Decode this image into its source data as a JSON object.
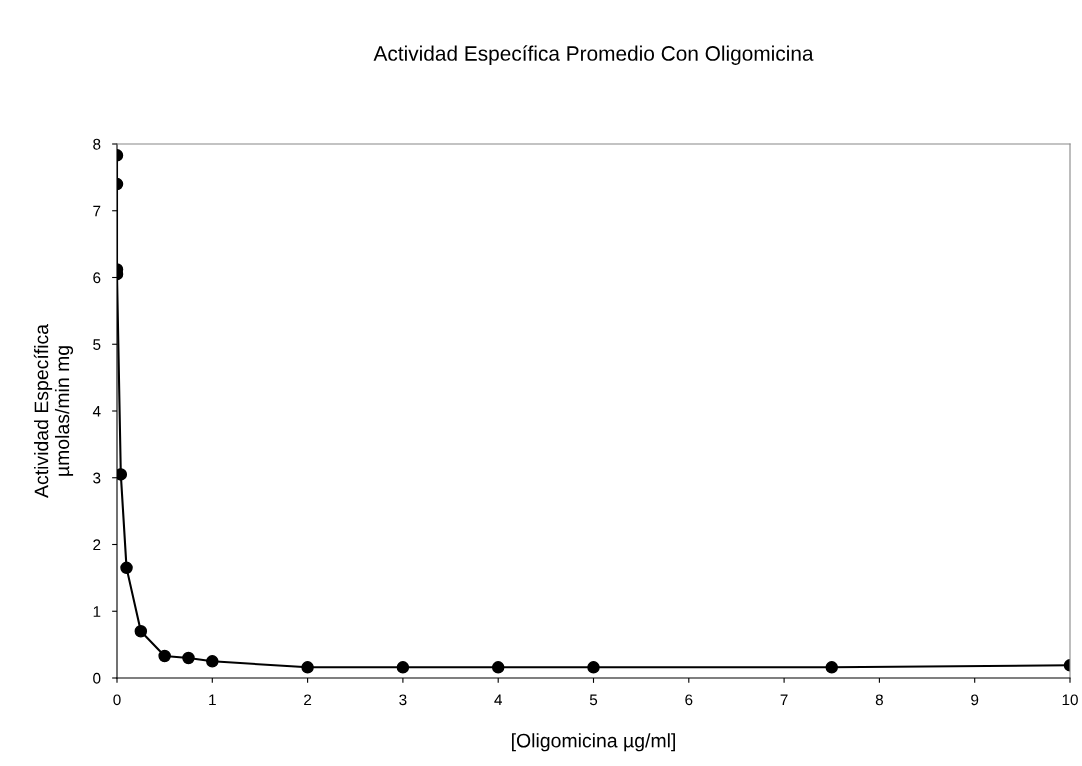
{
  "chart_data": {
    "type": "line",
    "title": "Actividad Específica Promedio Con Oligomicina",
    "xlabel": "[Oligomicina µg/ml]",
    "ylabel": "Actividad Específica\nµmolas/min mg",
    "x": [
      0,
      0,
      0,
      0,
      0.04,
      0.1,
      0.25,
      0.5,
      0.75,
      1,
      2,
      3,
      4,
      5,
      7.5,
      10
    ],
    "series": [
      {
        "color": "#000000",
        "values": [
          7.83,
          7.4,
          6.12,
          6.05,
          3.05,
          1.65,
          0.7,
          0.33,
          0.3,
          0.25,
          0.16,
          0.16,
          0.16,
          0.16,
          0.16,
          0.19
        ]
      }
    ],
    "xlim": [
      0,
      10
    ],
    "xticks": [
      0,
      1,
      2,
      3,
      4,
      5,
      6,
      7,
      8,
      9,
      10
    ],
    "ylim": [
      0,
      8
    ],
    "yticks": [
      0,
      1,
      2,
      3,
      4,
      5,
      6,
      7,
      8
    ],
    "grid": false,
    "legend": false,
    "marker": "circle",
    "line_style": "solid"
  }
}
